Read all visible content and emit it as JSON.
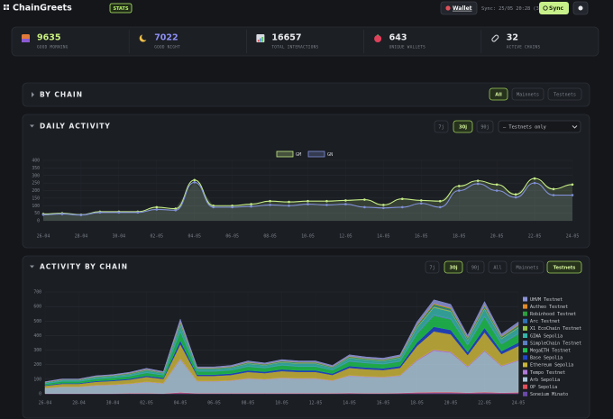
{
  "header": {
    "logo": "ChainGreets",
    "badge": "STATS",
    "wallet": "Wallet",
    "sync_status": "Sync: 25/05 20:28 (3)",
    "sync_button": "Sync"
  },
  "stats": [
    {
      "value": 9635,
      "label": "GOOD MORNING",
      "color": "#c8ef7e"
    },
    {
      "value": 7022,
      "label": "GOOD NIGHT",
      "color": "#8c8ff2"
    },
    {
      "value": 16657,
      "label": "TOTAL INTERACTIONS",
      "color": "#e8eaed"
    },
    {
      "value": 643,
      "label": "UNIQUE WALLETS",
      "color": "#e8eaed"
    },
    {
      "value": 32,
      "label": "ACTIVE CHAINS",
      "color": "#e8eaed"
    }
  ],
  "by_chain": {
    "title": "BY CHAIN",
    "filters": [
      "All",
      "Mainnets",
      "Testnets"
    ],
    "active": "All"
  },
  "daily_activity": {
    "title": "DAILY ACTIVITY",
    "ranges": [
      "7j",
      "30j",
      "90j"
    ],
    "active_range": "30j",
    "network_filter": "— Testnets only"
  },
  "activity_by_chain": {
    "title": "ACTIVITY BY CHAIN",
    "ranges": [
      "7j",
      "30j",
      "90j"
    ],
    "active_range": "30j",
    "filters": [
      "All",
      "Mainnets",
      "Testnets"
    ],
    "active_filter": "Testnets"
  },
  "chart_data": [
    {
      "type": "line",
      "categories": [
        "26-04",
        null,
        "28-04",
        null,
        "30-04",
        null,
        "02-05",
        null,
        "04-05",
        null,
        "06-05",
        null,
        "08-05",
        null,
        "10-05",
        null,
        "12-05",
        null,
        "14-05",
        null,
        "16-05",
        null,
        "18-05",
        null,
        "20-05",
        null,
        "22-05",
        null,
        "24-05"
      ],
      "series": [
        {
          "name": "GM",
          "color": "#c5ec86",
          "values": [
            45,
            50,
            40,
            60,
            60,
            60,
            90,
            80,
            270,
            100,
            100,
            110,
            130,
            125,
            130,
            130,
            135,
            140,
            105,
            145,
            135,
            130,
            230,
            265,
            240,
            175,
            280,
            210,
            240
          ]
        },
        {
          "name": "GN",
          "color": "#8090d8",
          "values": [
            40,
            45,
            38,
            55,
            55,
            55,
            75,
            70,
            255,
            90,
            90,
            95,
            105,
            100,
            110,
            105,
            110,
            90,
            85,
            90,
            115,
            90,
            200,
            245,
            200,
            155,
            250,
            170,
            170
          ]
        }
      ],
      "ylim": [
        0,
        400
      ],
      "yticks": [
        0,
        50,
        100,
        150,
        200,
        250,
        300,
        350,
        400
      ],
      "grid": true,
      "legend": "top"
    },
    {
      "type": "stacked-area",
      "categories": [
        "26-04",
        null,
        "28-04",
        null,
        "30-04",
        null,
        "02-05",
        null,
        "04-05",
        null,
        "06-05",
        null,
        "08-05",
        null,
        "10-05",
        null,
        "12-05",
        null,
        "14-05",
        null,
        "16-05",
        null,
        "18-05",
        null,
        "20-05",
        null,
        "22-05",
        null,
        "24-05"
      ],
      "series": [
        {
          "name": "UHVM Testnet",
          "color": "#8b93d6",
          "values": [
            3,
            4,
            4,
            5,
            5,
            6,
            7,
            6,
            20,
            7,
            7,
            8,
            9,
            8,
            9,
            9,
            9,
            8,
            10,
            10,
            10,
            10,
            19,
            25,
            24,
            16,
            25,
            16,
            19
          ]
        },
        {
          "name": "Autheo Testnet",
          "color": "#e08a2a",
          "values": [
            1,
            1,
            1,
            1,
            1,
            2,
            2,
            1,
            5,
            2,
            2,
            2,
            2,
            2,
            2,
            2,
            2,
            2,
            3,
            2,
            2,
            3,
            5,
            6,
            6,
            4,
            6,
            4,
            5
          ]
        },
        {
          "name": "Robinhood Testnet",
          "color": "#2e9e3e",
          "values": [
            1,
            1,
            1,
            2,
            2,
            2,
            2,
            2,
            6,
            2,
            2,
            2,
            3,
            2,
            3,
            3,
            3,
            2,
            3,
            3,
            3,
            3,
            6,
            8,
            7,
            5,
            7,
            5,
            6
          ]
        },
        {
          "name": "Arc Testnet",
          "color": "#2f6fb5",
          "values": [
            1,
            1,
            1,
            1,
            1,
            2,
            2,
            1,
            5,
            2,
            2,
            2,
            2,
            2,
            2,
            2,
            2,
            2,
            3,
            2,
            2,
            3,
            5,
            6,
            6,
            4,
            6,
            4,
            5
          ]
        },
        {
          "name": "X1 EcoChain Testnet",
          "color": "#9ac24a",
          "values": [
            1,
            1,
            1,
            2,
            2,
            2,
            2,
            2,
            6,
            2,
            2,
            2,
            3,
            2,
            3,
            3,
            3,
            2,
            3,
            3,
            3,
            3,
            6,
            8,
            7,
            5,
            7,
            5,
            6
          ]
        },
        {
          "name": "GIWA Sepolia",
          "color": "#36b3a8",
          "values": [
            6,
            8,
            8,
            10,
            10,
            11,
            14,
            12,
            40,
            14,
            14,
            15,
            18,
            17,
            18,
            18,
            18,
            15,
            21,
            20,
            19,
            21,
            38,
            50,
            48,
            31,
            50,
            32,
            38
          ]
        },
        {
          "name": "SimpleChain Testnet",
          "color": "#5b7fc4",
          "values": [
            1,
            1,
            1,
            1,
            1,
            2,
            2,
            1,
            5,
            2,
            2,
            2,
            2,
            2,
            2,
            2,
            2,
            2,
            3,
            2,
            2,
            3,
            5,
            6,
            6,
            4,
            6,
            4,
            5
          ]
        },
        {
          "name": "MegaETH Testnet",
          "color": "#1fbf4f",
          "values": [
            10,
            12,
            12,
            14,
            16,
            17,
            20,
            18,
            60,
            22,
            22,
            23,
            26,
            25,
            28,
            26,
            26,
            23,
            31,
            30,
            29,
            31,
            58,
            76,
            72,
            47,
            74,
            48,
            58
          ]
        },
        {
          "name": "Base Sepolia",
          "color": "#2244c8",
          "values": [
            4,
            5,
            5,
            6,
            6,
            7,
            8,
            8,
            25,
            9,
            9,
            10,
            11,
            10,
            12,
            11,
            11,
            10,
            13,
            12,
            12,
            13,
            24,
            32,
            30,
            20,
            31,
            20,
            24
          ]
        },
        {
          "name": "Ethereum Sepolia",
          "color": "#c8b43a",
          "values": [
            16,
            20,
            20,
            24,
            26,
            28,
            34,
            30,
            100,
            36,
            36,
            38,
            44,
            42,
            46,
            44,
            44,
            38,
            52,
            50,
            48,
            52,
            96,
            126,
            120,
            78,
            124,
            80,
            96
          ]
        },
        {
          "name": "Tempo Testnet",
          "color": "#b07ad8",
          "values": [
            1,
            1,
            1,
            2,
            2,
            2,
            2,
            2,
            6,
            2,
            2,
            2,
            3,
            2,
            3,
            3,
            3,
            2,
            3,
            3,
            3,
            3,
            6,
            8,
            7,
            5,
            7,
            5,
            6
          ]
        },
        {
          "name": "Arb Sepolia",
          "color": "#aac6d8",
          "values": [
            36,
            45,
            45,
            54,
            58,
            63,
            76,
            68,
            225,
            81,
            81,
            85,
            99,
            94,
            103,
            99,
            99,
            85,
            117,
            112,
            108,
            117,
            216,
            283,
            270,
            175,
            279,
            180,
            216
          ]
        },
        {
          "name": "OP Sepolia",
          "color": "#e0505a",
          "values": [
            1,
            1,
            1,
            1,
            1,
            2,
            2,
            1,
            5,
            2,
            2,
            2,
            2,
            2,
            2,
            2,
            2,
            2,
            3,
            2,
            2,
            3,
            5,
            6,
            6,
            4,
            6,
            4,
            5
          ]
        },
        {
          "name": "Soneium Minato",
          "color": "#6a4aa8",
          "values": [
            1,
            1,
            1,
            1,
            1,
            2,
            2,
            1,
            5,
            2,
            2,
            2,
            2,
            2,
            2,
            2,
            2,
            2,
            3,
            2,
            2,
            3,
            5,
            6,
            6,
            4,
            6,
            4,
            5
          ]
        }
      ],
      "ylim": [
        0,
        700
      ],
      "yticks": [
        0,
        100,
        200,
        300,
        400,
        500,
        600,
        700
      ],
      "grid": true,
      "legend": "right"
    }
  ]
}
